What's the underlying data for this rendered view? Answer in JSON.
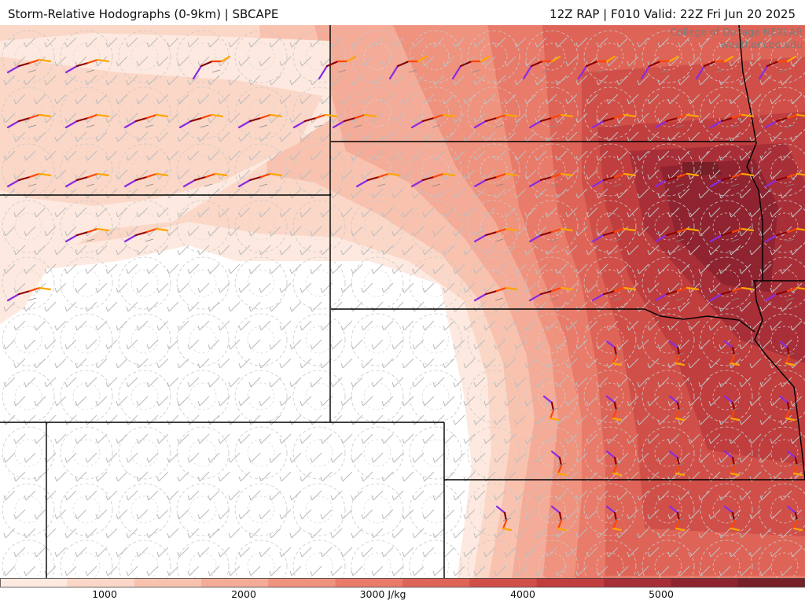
{
  "header": {
    "title": "Storm-Relative Hodographs (0-9km) | SBCAPE",
    "run_info": "12Z RAP | F010 Valid: 22Z Fri Jun 20 2025"
  },
  "credit": {
    "line1": "College of DuPage NEXLAB",
    "line2": "weather.cod.edu"
  },
  "field": {
    "name": "SBCAPE",
    "unit": "J/kg",
    "colors": [
      "#fde9df",
      "#fbd7c7",
      "#f8c2af",
      "#f4ab97",
      "#ef937f",
      "#e97b6a",
      "#de6457",
      "#d05049",
      "#c03e3e",
      "#a82f38",
      "#8f2430",
      "#772028"
    ]
  },
  "colorbar": {
    "ticks": [
      "1000",
      "2000",
      "3000 J/kg",
      "4000",
      "5000"
    ]
  },
  "hodograph_colors": [
    "#8a2be2",
    "#8b0000",
    "#ff4500",
    "#ffa500"
  ],
  "layers": {
    "barbs": "wind-barbs",
    "boundaries": "state-borders",
    "range_rings": "hodograph-rings"
  }
}
